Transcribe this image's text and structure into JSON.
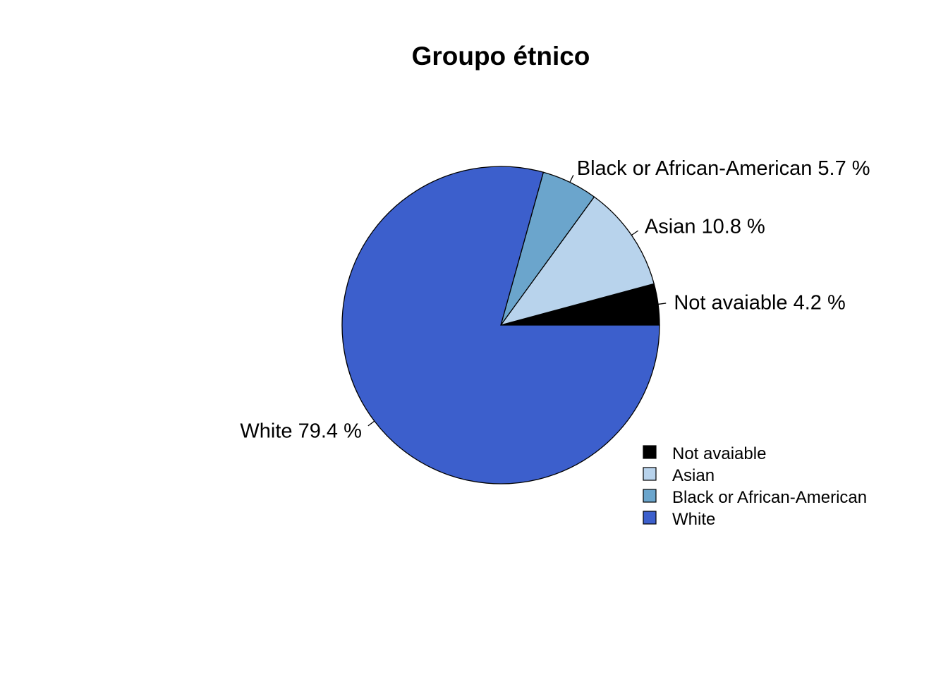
{
  "chart_data": {
    "type": "pie",
    "title": "Groupo étnico",
    "slices": [
      {
        "name": "Not avaiable",
        "value": 4.2,
        "color": "#000000",
        "label": "Not avaiable 4.2 %"
      },
      {
        "name": "Asian",
        "value": 10.8,
        "color": "#B8D3EC",
        "label": "Asian 10.8 %"
      },
      {
        "name": "Black or African-American",
        "value": 5.7,
        "color": "#6BA5CC",
        "label": "Black or African-American 5.7 %"
      },
      {
        "name": "White",
        "value": 79.4,
        "color": "#3C5FCC",
        "label": "White 79.4 %"
      }
    ],
    "legend": {
      "placement": "bottom-right",
      "entries": [
        "Not avaiable",
        "Asian",
        "Black or African-American",
        "White"
      ]
    },
    "direction": "counterclockwise",
    "start": "3 o'clock"
  }
}
